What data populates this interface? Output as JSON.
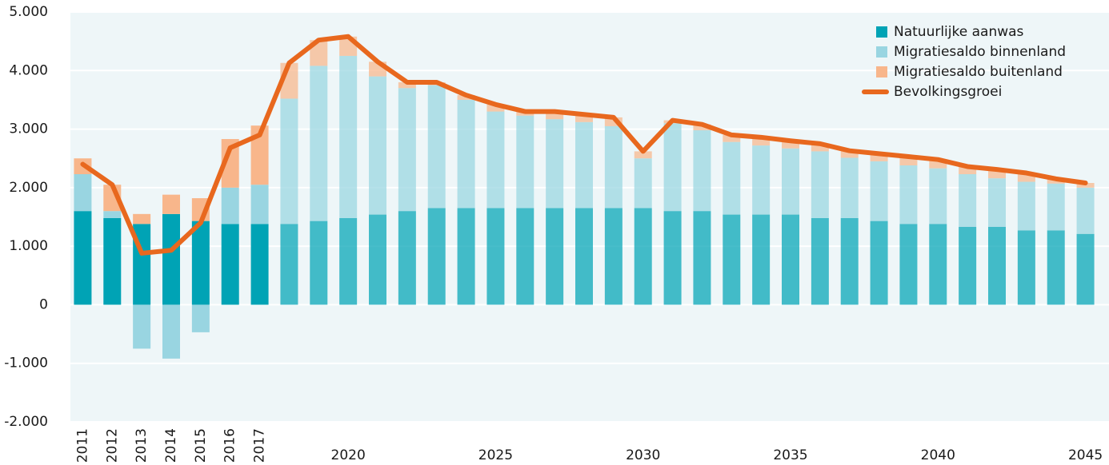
{
  "chart_data": {
    "type": "bar",
    "categories": [
      "2011",
      "2012",
      "2013",
      "2014",
      "2015",
      "2016",
      "2017",
      null,
      null,
      "2020",
      null,
      null,
      null,
      null,
      "2025",
      null,
      null,
      null,
      null,
      "2030",
      null,
      null,
      null,
      null,
      "2035",
      null,
      null,
      null,
      null,
      "2040",
      null,
      null,
      null,
      null,
      "2045"
    ],
    "series": [
      {
        "name": "Natuurlijke aanwas",
        "color": "#00a3b5",
        "values": [
          1600,
          1480,
          1380,
          1550,
          1430,
          1380,
          1380,
          1380,
          1430,
          1480,
          1540,
          1600,
          1650,
          1650,
          1650,
          1650,
          1650,
          1650,
          1650,
          1650,
          1600,
          1600,
          1540,
          1540,
          1540,
          1480,
          1480,
          1430,
          1380,
          1380,
          1330,
          1330,
          1270,
          1270,
          1210
        ]
      },
      {
        "name": "Migratiesaldo binnenland",
        "color": "#99d5e1",
        "values": [
          630,
          120,
          -750,
          -920,
          -470,
          620,
          670,
          2140,
          2650,
          2770,
          2360,
          2100,
          2100,
          1850,
          1650,
          1580,
          1520,
          1470,
          1400,
          850,
          1500,
          1380,
          1240,
          1180,
          1130,
          1140,
          1030,
          1020,
          1000,
          950,
          900,
          830,
          830,
          800,
          790
        ]
      },
      {
        "name": "Migratiesaldo buitenland",
        "color": "#f8b68b",
        "values": [
          270,
          450,
          170,
          330,
          390,
          830,
          1010,
          610,
          440,
          330,
          250,
          100,
          50,
          80,
          120,
          70,
          130,
          130,
          150,
          120,
          50,
          100,
          120,
          140,
          130,
          130,
          120,
          130,
          150,
          150,
          130,
          150,
          150,
          80,
          80
        ]
      },
      {
        "name": "Bevolkingsgroei",
        "color": "#e8681e",
        "type": "line",
        "values": [
          2400,
          2050,
          880,
          930,
          1400,
          2680,
          2900,
          4130,
          4520,
          4580,
          4150,
          3800,
          3800,
          3580,
          3420,
          3300,
          3300,
          3250,
          3200,
          2620,
          3150,
          3080,
          2900,
          2860,
          2800,
          2750,
          2630,
          2580,
          2530,
          2480,
          2360,
          2310,
          2250,
          2150,
          2080
        ]
      }
    ],
    "ylim": [
      -2000,
      5000
    ],
    "yticks": [
      {
        "value": -2000,
        "label": "-2.000"
      },
      {
        "value": -1000,
        "label": "-1.000"
      },
      0,
      {
        "value": 1000,
        "label": "1.000"
      },
      {
        "value": 2000,
        "label": "2.000"
      },
      {
        "value": 3000,
        "label": "3.000"
      },
      {
        "value": 4000,
        "label": "4.000"
      },
      {
        "value": 5000,
        "label": "5.000"
      }
    ],
    "grid": true,
    "legend": "top-right"
  }
}
